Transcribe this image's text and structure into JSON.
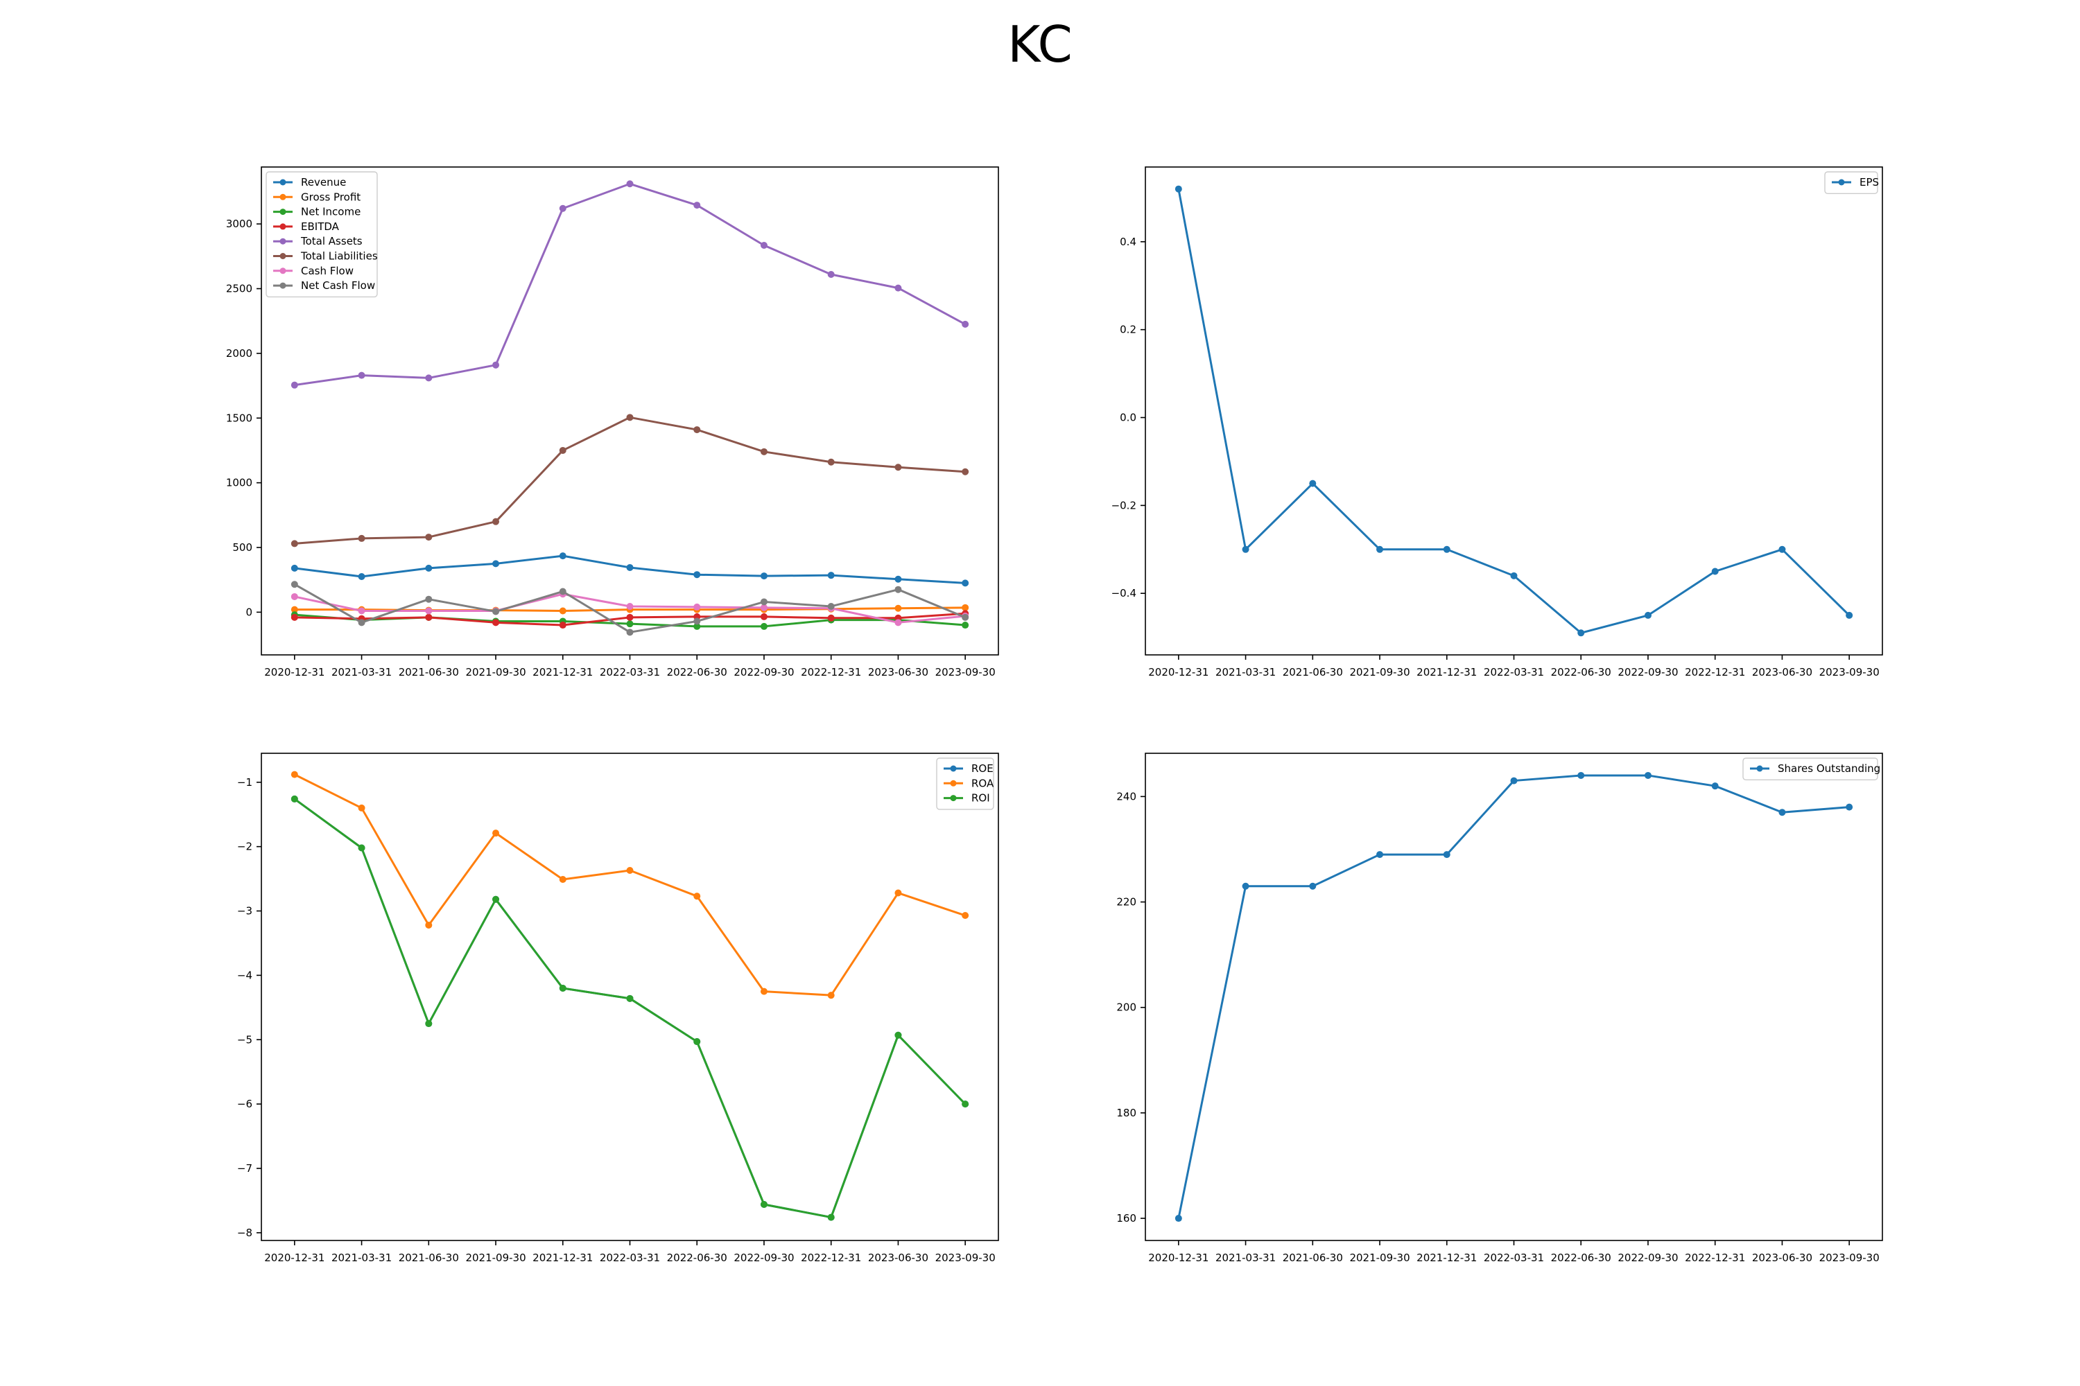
{
  "figure": {
    "title": "KC"
  },
  "colors": {
    "c0": "#1f77b4",
    "c1": "#ff7f0e",
    "c2": "#2ca02c",
    "c3": "#d62728",
    "c4": "#9467bd",
    "c5": "#8c564b",
    "c6": "#e377c2",
    "c7": "#7f7f7f"
  },
  "chart_data": [
    {
      "id": "financials",
      "type": "line",
      "title": "",
      "xlabel": "",
      "ylabel": "",
      "categories": [
        "2020-12-31",
        "2021-03-31",
        "2021-06-30",
        "2021-09-30",
        "2021-12-31",
        "2022-03-31",
        "2022-06-30",
        "2022-09-30",
        "2022-12-31",
        "2023-06-30",
        "2023-09-30"
      ],
      "ylim": [
        -330,
        3440
      ],
      "yticks": [
        0,
        500,
        1000,
        1500,
        2000,
        2500,
        3000
      ],
      "grid": false,
      "legend": "upper-left",
      "series": [
        {
          "name": "Revenue",
          "color": "#1f77b4",
          "values": [
            340,
            275,
            340,
            375,
            435,
            345,
            290,
            280,
            285,
            255,
            225
          ]
        },
        {
          "name": "Gross Profit",
          "color": "#ff7f0e",
          "values": [
            20,
            20,
            15,
            15,
            10,
            20,
            20,
            20,
            25,
            30,
            35
          ]
        },
        {
          "name": "Net Income",
          "color": "#2ca02c",
          "values": [
            -20,
            -60,
            -40,
            -70,
            -70,
            -90,
            -110,
            -110,
            -60,
            -60,
            -100
          ]
        },
        {
          "name": "EBITDA",
          "color": "#d62728",
          "values": [
            -40,
            -50,
            -40,
            -80,
            -100,
            -40,
            -35,
            -35,
            -45,
            -45,
            -10
          ]
        },
        {
          "name": "Total Assets",
          "color": "#9467bd",
          "values": [
            1755,
            1830,
            1810,
            1910,
            3120,
            3310,
            3145,
            2835,
            2610,
            2505,
            2225
          ]
        },
        {
          "name": "Total Liabilities",
          "color": "#8c564b",
          "values": [
            530,
            570,
            580,
            700,
            1250,
            1505,
            1410,
            1240,
            1160,
            1120,
            1085
          ]
        },
        {
          "name": "Cash Flow",
          "color": "#e377c2",
          "values": [
            120,
            10,
            10,
            10,
            140,
            45,
            40,
            35,
            30,
            -80,
            -30
          ]
        },
        {
          "name": "Net Cash Flow",
          "color": "#7f7f7f",
          "values": [
            215,
            -80,
            100,
            5,
            160,
            -155,
            -70,
            80,
            45,
            175,
            -40
          ]
        }
      ]
    },
    {
      "id": "eps",
      "type": "line",
      "title": "",
      "xlabel": "",
      "ylabel": "",
      "categories": [
        "2020-12-31",
        "2021-03-31",
        "2021-06-30",
        "2021-09-30",
        "2021-12-31",
        "2022-03-31",
        "2022-06-30",
        "2022-09-30",
        "2022-12-31",
        "2023-06-30",
        "2023-09-30"
      ],
      "ylim": [
        -0.54,
        0.57
      ],
      "yticks": [
        -0.4,
        -0.2,
        0.0,
        0.2,
        0.4
      ],
      "yticklabels": [
        "−0.4",
        "−0.2",
        "0.0",
        "0.2",
        "0.4"
      ],
      "grid": false,
      "legend": "upper-right",
      "series": [
        {
          "name": "EPS",
          "color": "#1f77b4",
          "values": [
            0.52,
            -0.3,
            -0.15,
            -0.3,
            -0.3,
            -0.36,
            -0.49,
            -0.45,
            -0.35,
            -0.3,
            -0.45
          ]
        }
      ]
    },
    {
      "id": "ratios",
      "type": "line",
      "title": "",
      "xlabel": "",
      "ylabel": "",
      "categories": [
        "2020-12-31",
        "2021-03-31",
        "2021-06-30",
        "2021-09-30",
        "2021-12-31",
        "2022-03-31",
        "2022-06-30",
        "2022-09-30",
        "2022-12-31",
        "2023-06-30",
        "2023-09-30"
      ],
      "ylim": [
        -8.12,
        -0.55
      ],
      "yticks": [
        -8,
        -7,
        -6,
        -5,
        -4,
        -3,
        -2,
        -1
      ],
      "yticklabels": [
        "−8",
        "−7",
        "−6",
        "−5",
        "−4",
        "−3",
        "−2",
        "−1"
      ],
      "grid": false,
      "legend": "upper-right",
      "series": [
        {
          "name": "ROE",
          "color": "#1f77b4",
          "values": [
            -1.26,
            -2.02,
            -4.75,
            -2.82,
            -4.2,
            -4.36,
            -5.03,
            -7.56,
            -7.76,
            -4.93,
            -6.0
          ]
        },
        {
          "name": "ROA",
          "color": "#ff7f0e",
          "values": [
            -0.88,
            -1.4,
            -3.22,
            -1.79,
            -2.51,
            -2.37,
            -2.77,
            -4.25,
            -4.31,
            -2.72,
            -3.07
          ]
        },
        {
          "name": "ROI",
          "color": "#2ca02c",
          "values": [
            -1.26,
            -2.02,
            -4.75,
            -2.82,
            -4.2,
            -4.36,
            -5.03,
            -7.56,
            -7.76,
            -4.93,
            -6.0
          ]
        }
      ]
    },
    {
      "id": "shares",
      "type": "line",
      "title": "",
      "xlabel": "",
      "ylabel": "",
      "categories": [
        "2020-12-31",
        "2021-03-31",
        "2021-06-30",
        "2021-09-30",
        "2021-12-31",
        "2022-03-31",
        "2022-06-30",
        "2022-09-30",
        "2022-12-31",
        "2023-06-30",
        "2023-09-30"
      ],
      "ylim": [
        155.8,
        248.2
      ],
      "yticks": [
        160,
        180,
        200,
        220,
        240
      ],
      "grid": false,
      "legend": "upper-right",
      "series": [
        {
          "name": "Shares Outstanding",
          "color": "#1f77b4",
          "values": [
            160,
            223,
            223,
            229,
            229,
            243,
            244,
            244,
            242,
            237,
            238
          ]
        }
      ]
    }
  ]
}
